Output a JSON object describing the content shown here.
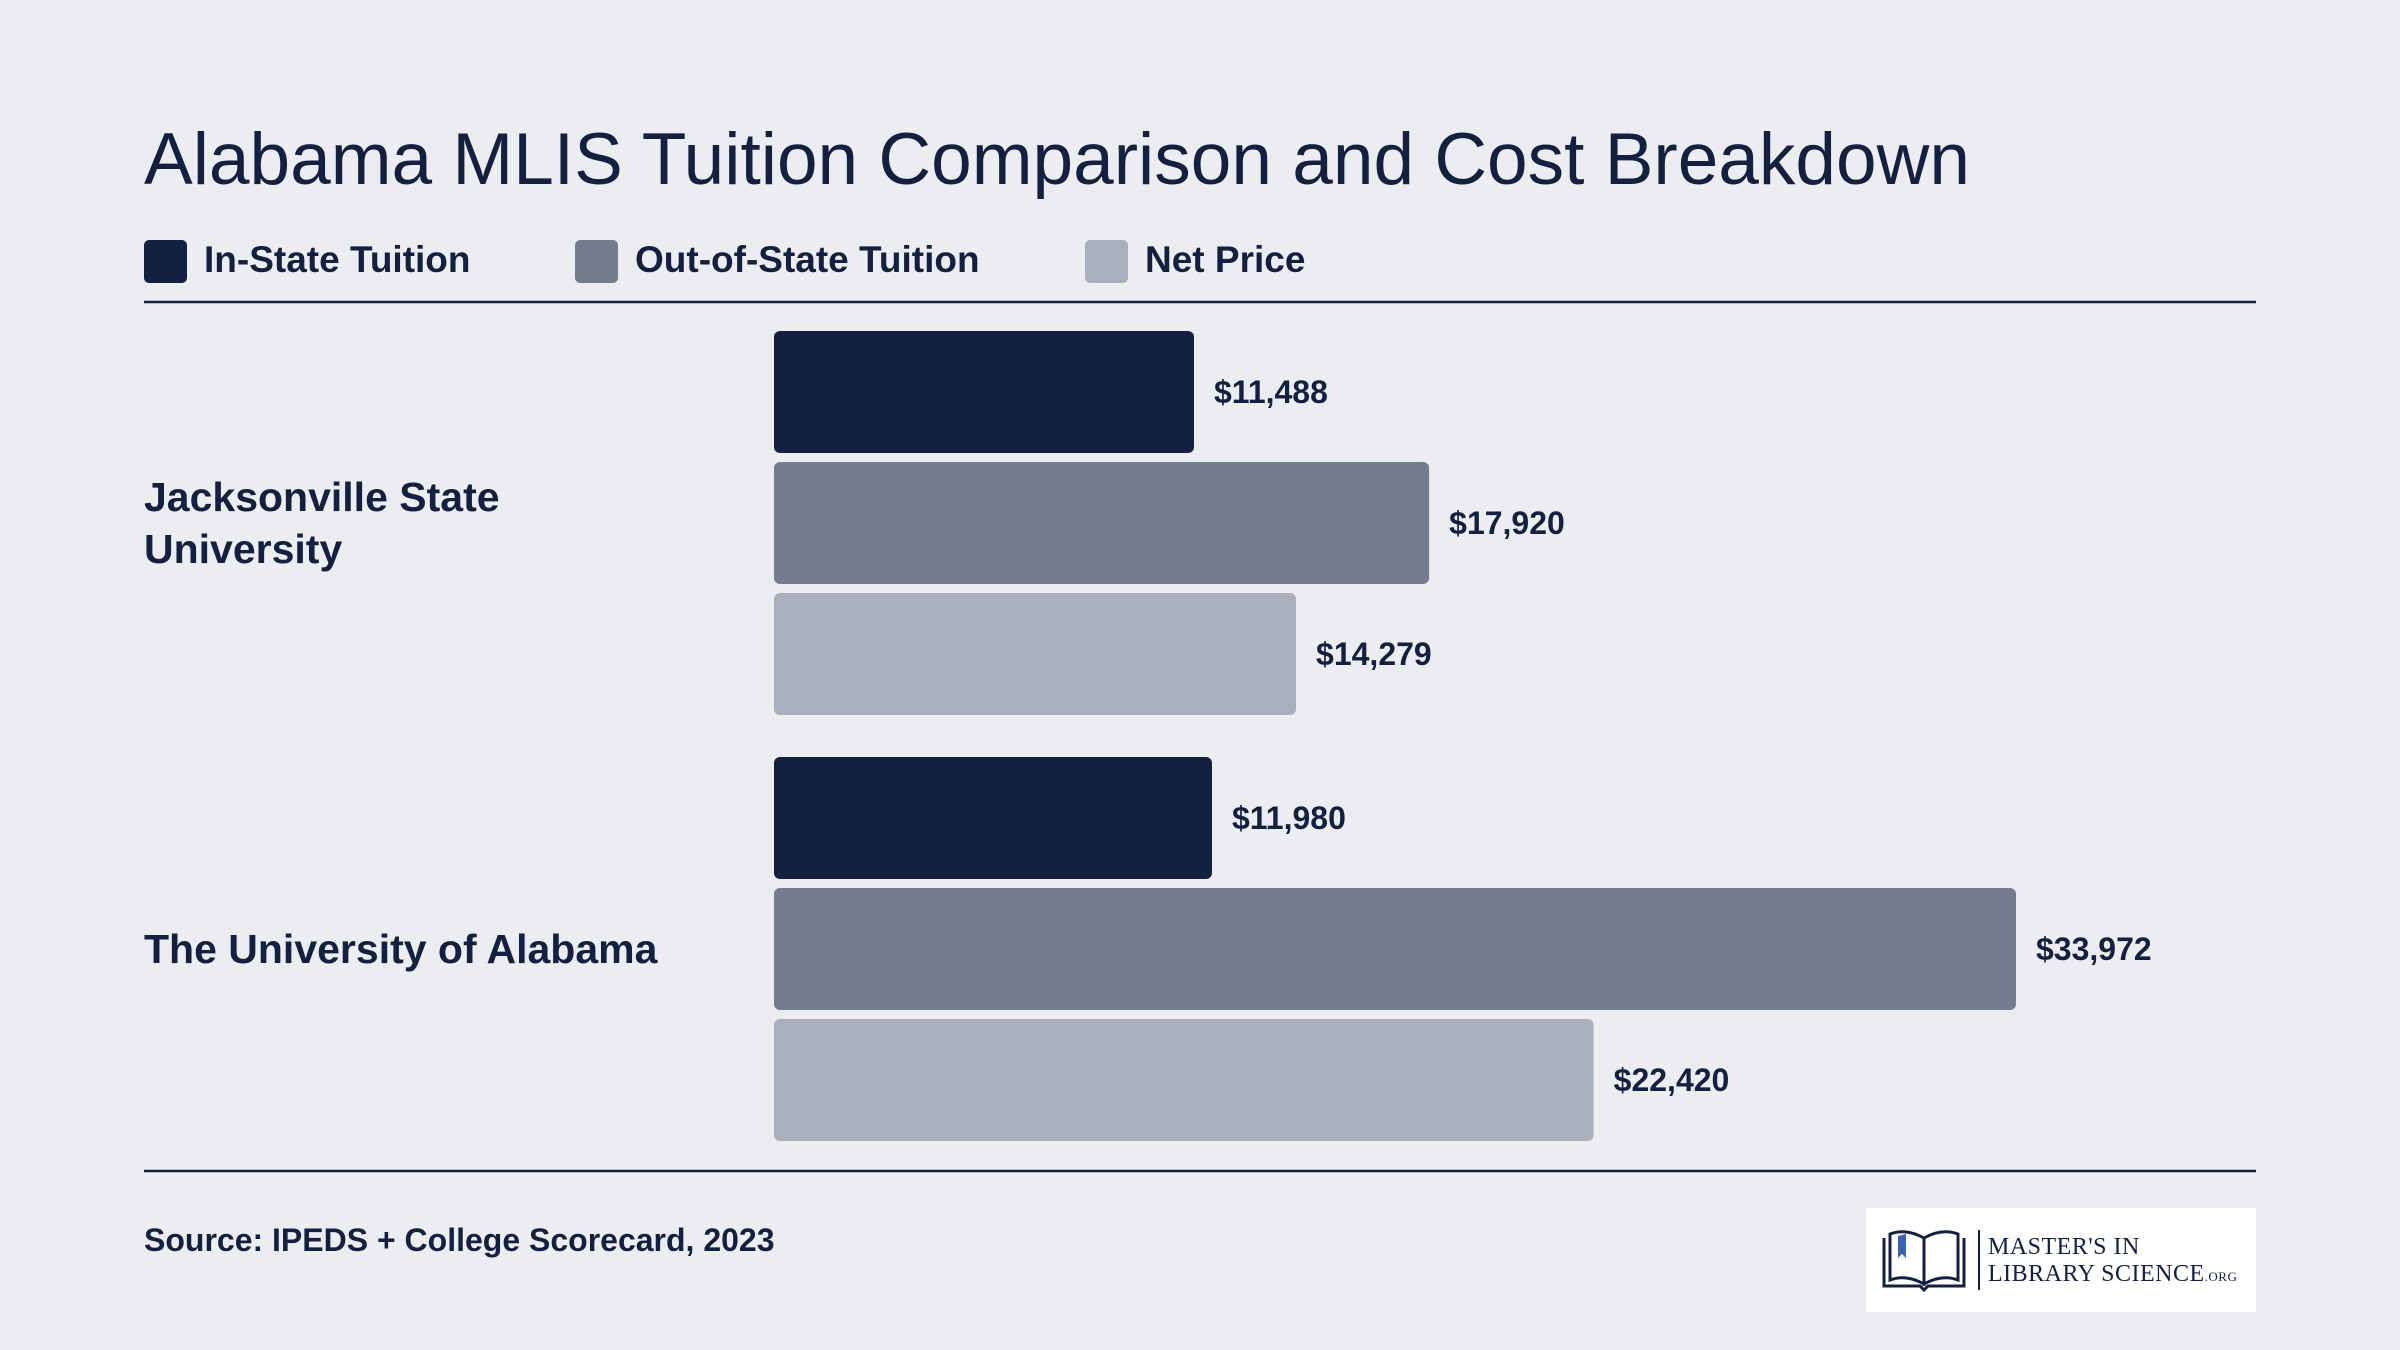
{
  "chart_data": {
    "type": "bar",
    "orientation": "horizontal",
    "title": "Alabama MLIS Tuition Comparison and Cost Breakdown",
    "categories": [
      "Jacksonville State University",
      "The University of Alabama"
    ],
    "series": [
      {
        "name": "In-State Tuition",
        "color": "#13203f",
        "values": [
          11488,
          11980
        ],
        "value_labels": [
          "$11,488",
          "$11,980"
        ]
      },
      {
        "name": "Out-of-State Tuition",
        "color": "#737d8f",
        "values": [
          17920,
          33972
        ],
        "value_labels": [
          "$17,920",
          "$33,972"
        ]
      },
      {
        "name": "Net Price",
        "color": "#aab0bb",
        "values": [
          14279,
          22420
        ],
        "value_labels": [
          "$14,279",
          "$22,420"
        ]
      }
    ],
    "legend": "top-left",
    "grid": false
  },
  "source": "Source: IPEDS + College Scorecard, 2023",
  "logo": {
    "line1": "MASTER'S IN",
    "line2": "LIBRARY SCIENCE",
    "suffix": ".ORG"
  }
}
